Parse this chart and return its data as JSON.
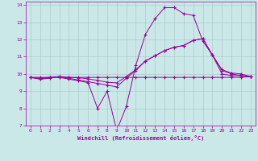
{
  "background_color": "#cbe8e8",
  "plot_bg_color": "#cbe8e8",
  "grid_color": "#aacccc",
  "line_color": "#990099",
  "marker": "+",
  "xlabel": "Windchill (Refroidissement éolien,°C)",
  "xlim": [
    -0.5,
    23.5
  ],
  "ylim": [
    7,
    14.2
  ],
  "xticks": [
    0,
    1,
    2,
    3,
    4,
    5,
    6,
    7,
    8,
    9,
    10,
    11,
    12,
    13,
    14,
    15,
    16,
    17,
    18,
    19,
    20,
    21,
    22,
    23
  ],
  "yticks": [
    7,
    8,
    9,
    10,
    11,
    12,
    13,
    14
  ],
  "series": [
    [
      9.8,
      9.7,
      9.8,
      9.8,
      9.7,
      9.6,
      9.5,
      8.0,
      9.0,
      6.7,
      8.1,
      10.5,
      12.3,
      13.2,
      13.85,
      13.85,
      13.5,
      13.4,
      11.9,
      11.1,
      10.0,
      9.9,
      9.9,
      9.85
    ],
    [
      9.8,
      9.7,
      9.75,
      9.85,
      9.75,
      9.65,
      9.55,
      9.45,
      9.35,
      9.25,
      9.75,
      10.2,
      10.75,
      11.05,
      11.35,
      11.55,
      11.65,
      11.95,
      12.05,
      11.1,
      10.2,
      10.0,
      9.9,
      9.85
    ],
    [
      9.8,
      9.75,
      9.8,
      9.85,
      9.8,
      9.78,
      9.72,
      9.62,
      9.52,
      9.48,
      9.85,
      10.25,
      10.75,
      11.05,
      11.35,
      11.55,
      11.65,
      11.95,
      12.05,
      11.1,
      10.25,
      10.05,
      10.0,
      9.85
    ],
    [
      9.8,
      9.8,
      9.8,
      9.8,
      9.8,
      9.8,
      9.8,
      9.8,
      9.8,
      9.8,
      9.8,
      9.8,
      9.8,
      9.8,
      9.8,
      9.8,
      9.8,
      9.8,
      9.8,
      9.8,
      9.8,
      9.8,
      9.8,
      9.85
    ]
  ]
}
